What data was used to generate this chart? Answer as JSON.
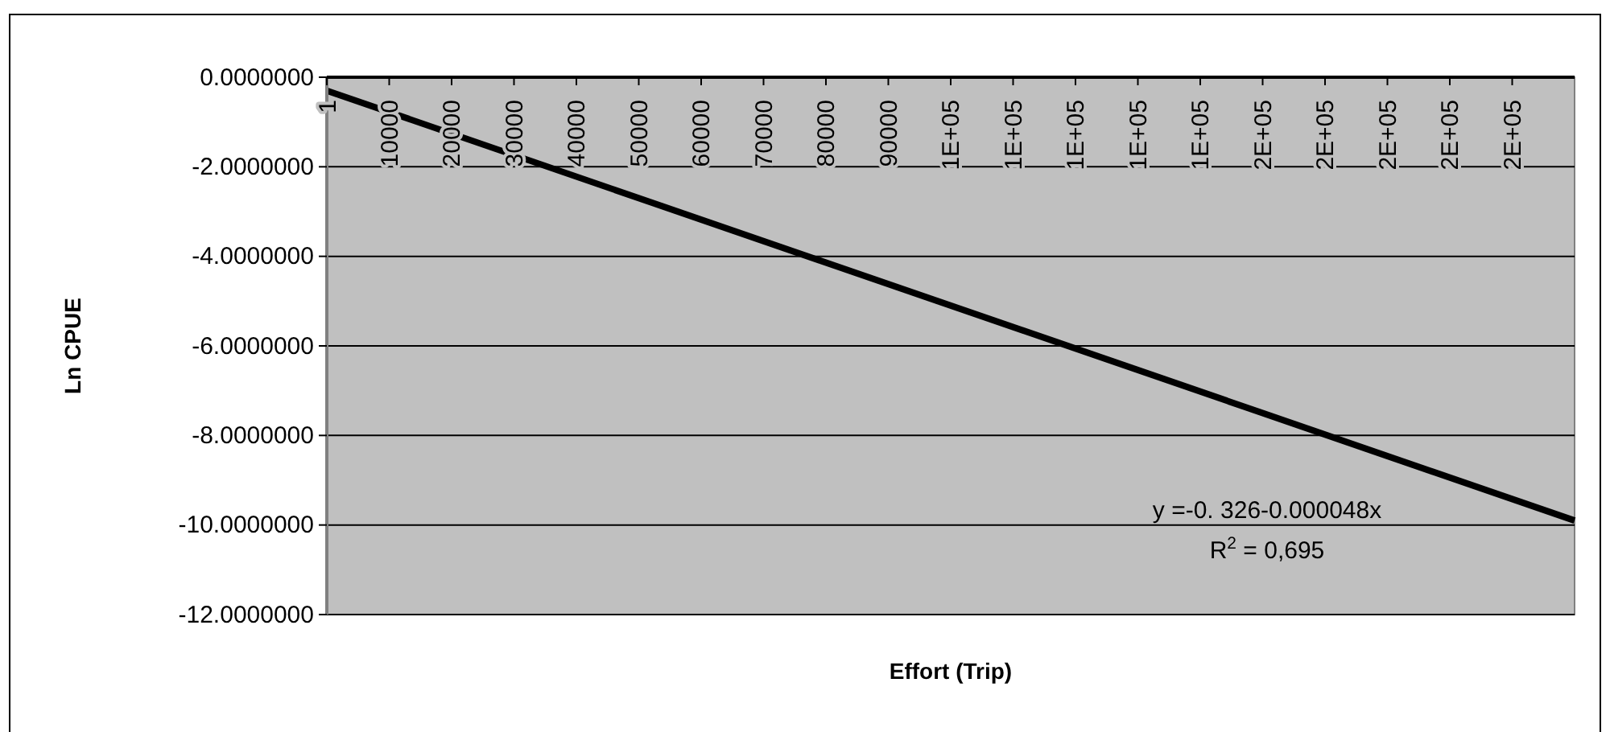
{
  "chart_data": {
    "type": "line",
    "xlabel": "Effort (Trip)",
    "ylabel": "Ln CPUE",
    "xlim": [
      1,
      200000
    ],
    "xticks": [
      {
        "value": 1,
        "label": "1"
      },
      {
        "value": 10000,
        "label": "10000"
      },
      {
        "value": 20000,
        "label": "20000"
      },
      {
        "value": 30000,
        "label": "30000"
      },
      {
        "value": 40000,
        "label": "40000"
      },
      {
        "value": 50000,
        "label": "50000"
      },
      {
        "value": 60000,
        "label": "60000"
      },
      {
        "value": 70000,
        "label": "70000"
      },
      {
        "value": 80000,
        "label": "80000"
      },
      {
        "value": 90000,
        "label": "90000"
      },
      {
        "value": 100000,
        "label": "1E+05"
      },
      {
        "value": 110000,
        "label": "1E+05"
      },
      {
        "value": 120000,
        "label": "1E+05"
      },
      {
        "value": 130000,
        "label": "1E+05"
      },
      {
        "value": 140000,
        "label": "1E+05"
      },
      {
        "value": 150000,
        "label": "2E+05"
      },
      {
        "value": 160000,
        "label": "2E+05"
      },
      {
        "value": 170000,
        "label": "2E+05"
      },
      {
        "value": 180000,
        "label": "2E+05"
      },
      {
        "value": 190000,
        "label": "2E+05"
      }
    ],
    "ylim": [
      -12,
      0
    ],
    "yticks": [
      {
        "value": 0,
        "label": "0.0000000"
      },
      {
        "value": -2,
        "label": "-2.0000000"
      },
      {
        "value": -4,
        "label": "-4.0000000"
      },
      {
        "value": -6,
        "label": "-6.0000000"
      },
      {
        "value": -8,
        "label": "-8.0000000"
      },
      {
        "value": -10,
        "label": "-10.0000000"
      },
      {
        "value": -12,
        "label": "-12.0000000"
      }
    ],
    "grid": "y",
    "marker": "none",
    "line_style": "solid",
    "series": [
      {
        "color": "#000000",
        "x": [
          1,
          200000
        ],
        "values": [
          -0.3,
          -9.9
        ]
      }
    ],
    "annotations": [
      "y =-0. 326-0.000048x",
      "R$^{2}$ = 0,695"
    ]
  }
}
